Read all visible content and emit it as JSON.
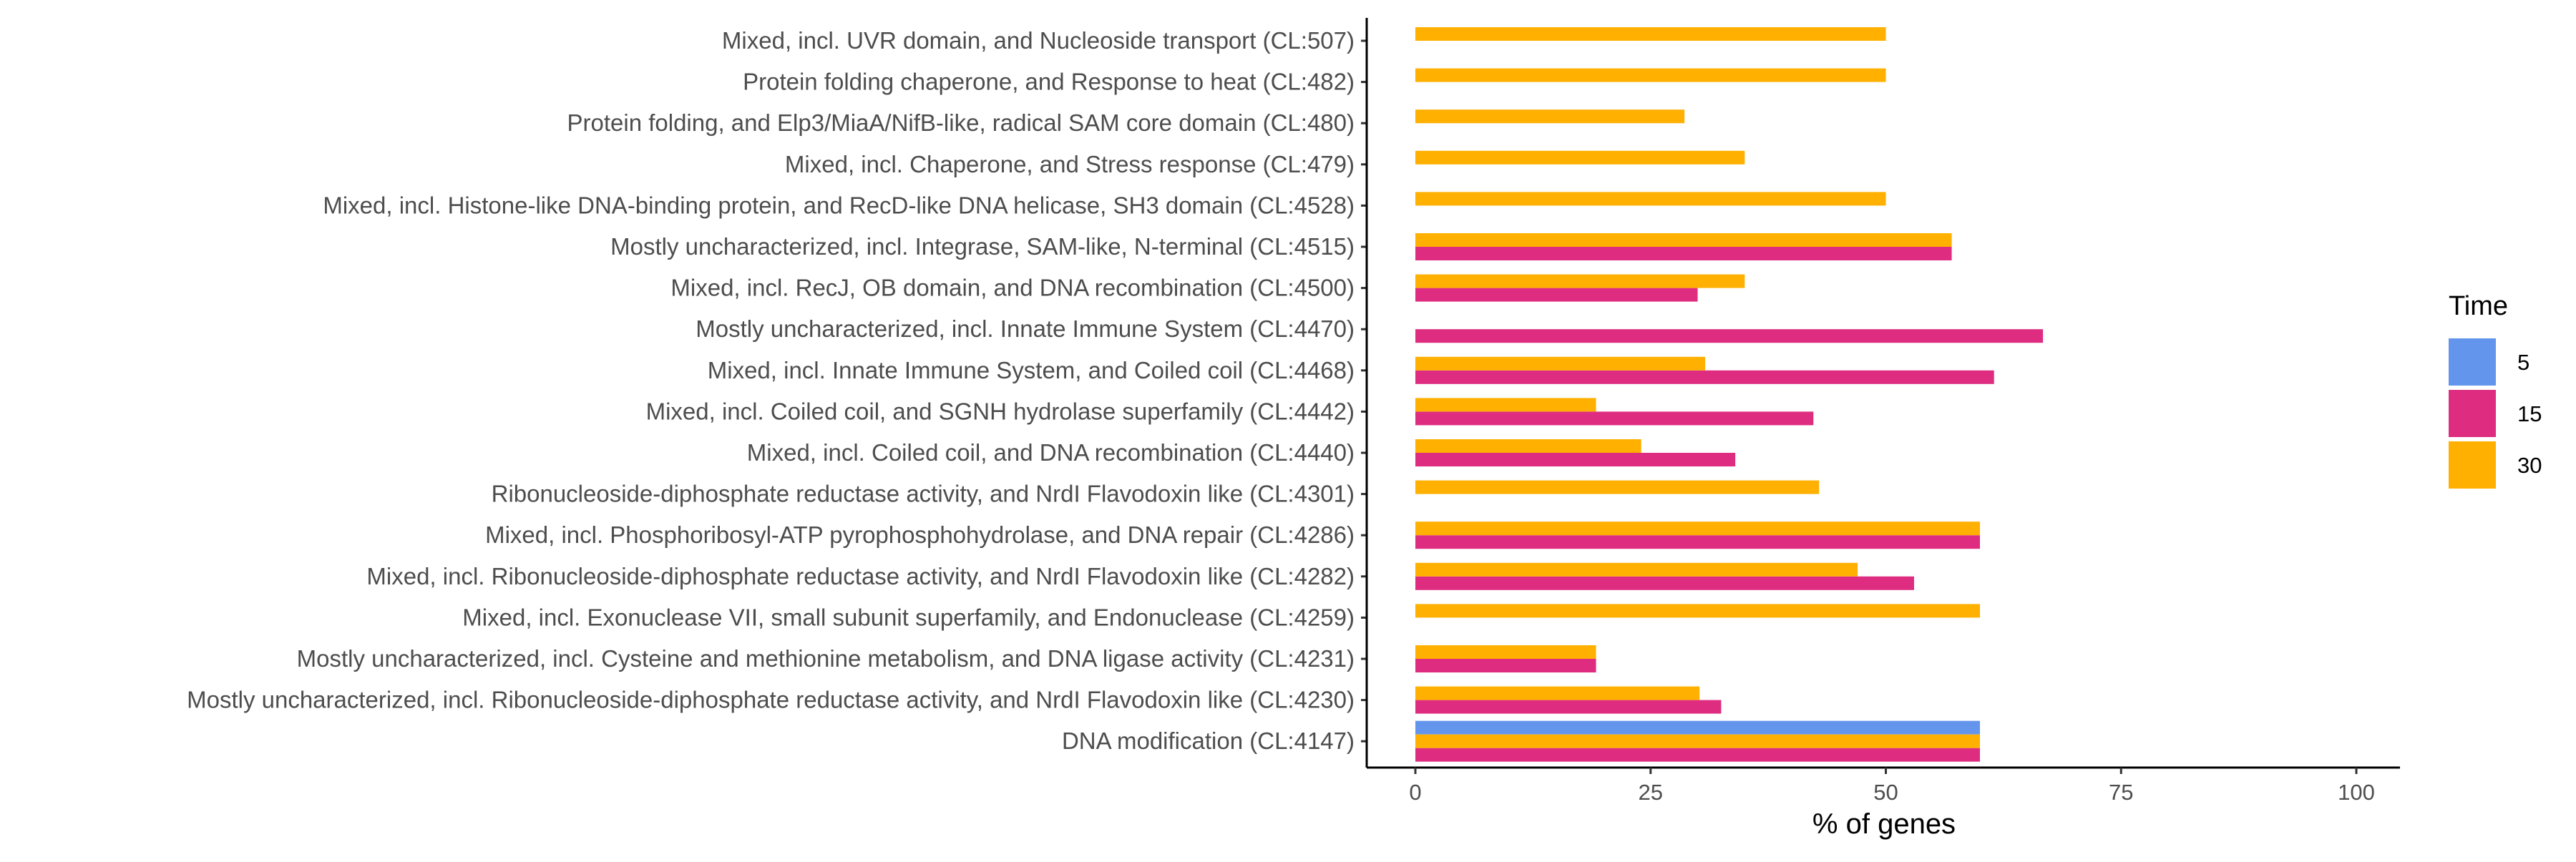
{
  "chart_data": {
    "type": "bar",
    "orientation": "horizontal",
    "grid": false,
    "legend_position": "right",
    "xlabel": "% of genes",
    "ylabel": "",
    "xlim": [
      0,
      100
    ],
    "xticks": [
      0,
      25,
      50,
      75,
      100
    ],
    "xtick_labels": [
      "0",
      "25",
      "50",
      "75",
      "100"
    ],
    "categories": [
      "Mixed, incl. UVR domain, and Nucleoside transport (CL:507)",
      "Protein folding chaperone, and Response to heat (CL:482)",
      "Protein folding, and Elp3/MiaA/NifB-like, radical SAM core domain (CL:480)",
      "Mixed, incl. Chaperone, and Stress response (CL:479)",
      "Mixed, incl. Histone-like DNA-binding protein, and RecD-like DNA helicase, SH3 domain (CL:4528)",
      "Mostly uncharacterized, incl. Integrase, SAM-like, N-terminal (CL:4515)",
      "Mixed, incl. RecJ, OB domain, and DNA recombination (CL:4500)",
      "Mostly uncharacterized, incl. Innate Immune System (CL:4470)",
      "Mixed, incl. Innate Immune System, and Coiled coil (CL:4468)",
      "Mixed, incl. Coiled coil, and SGNH hydrolase superfamily (CL:4442)",
      "Mixed, incl. Coiled coil, and DNA recombination (CL:4440)",
      "Ribonucleoside-diphosphate reductase activity, and NrdI Flavodoxin like (CL:4301)",
      "Mixed, incl. Phosphoribosyl-ATP pyrophosphohydrolase, and DNA repair (CL:4286)",
      "Mixed, incl. Ribonucleoside-diphosphate reductase activity, and NrdI Flavodoxin like (CL:4282)",
      "Mixed, incl. Exonuclease VII, small subunit superfamily, and Endonuclease (CL:4259)",
      "Mostly uncharacterized, incl. Cysteine and methionine metabolism, and DNA ligase activity (CL:4231)",
      "Mostly uncharacterized, incl. Ribonucleoside-diphosphate reductase activity, and NrdI Flavodoxin like (CL:4230)",
      "DNA modification (CL:4147)"
    ],
    "legend": {
      "title": "Time",
      "entries": [
        {
          "label": "5",
          "color": "#6495ED"
        },
        {
          "label": "15",
          "color": "#DE2D80"
        },
        {
          "label": "30",
          "color": "#FFB000"
        }
      ]
    },
    "series": [
      {
        "name": "5",
        "color": "#6495ED",
        "values": [
          null,
          null,
          null,
          null,
          null,
          null,
          null,
          null,
          null,
          null,
          null,
          null,
          null,
          null,
          null,
          null,
          null,
          60
        ]
      },
      {
        "name": "15",
        "color": "#DE2D80",
        "values": [
          null,
          null,
          null,
          null,
          null,
          57,
          30,
          66.7,
          61.5,
          42.3,
          34,
          null,
          60,
          53,
          null,
          19.2,
          32.5,
          60
        ]
      },
      {
        "name": "30",
        "color": "#FFB000",
        "values": [
          50,
          50,
          28.6,
          35,
          50,
          57,
          35,
          null,
          30.8,
          19.2,
          24,
          42.9,
          60,
          47,
          60,
          19.2,
          30.2,
          60
        ]
      }
    ]
  }
}
